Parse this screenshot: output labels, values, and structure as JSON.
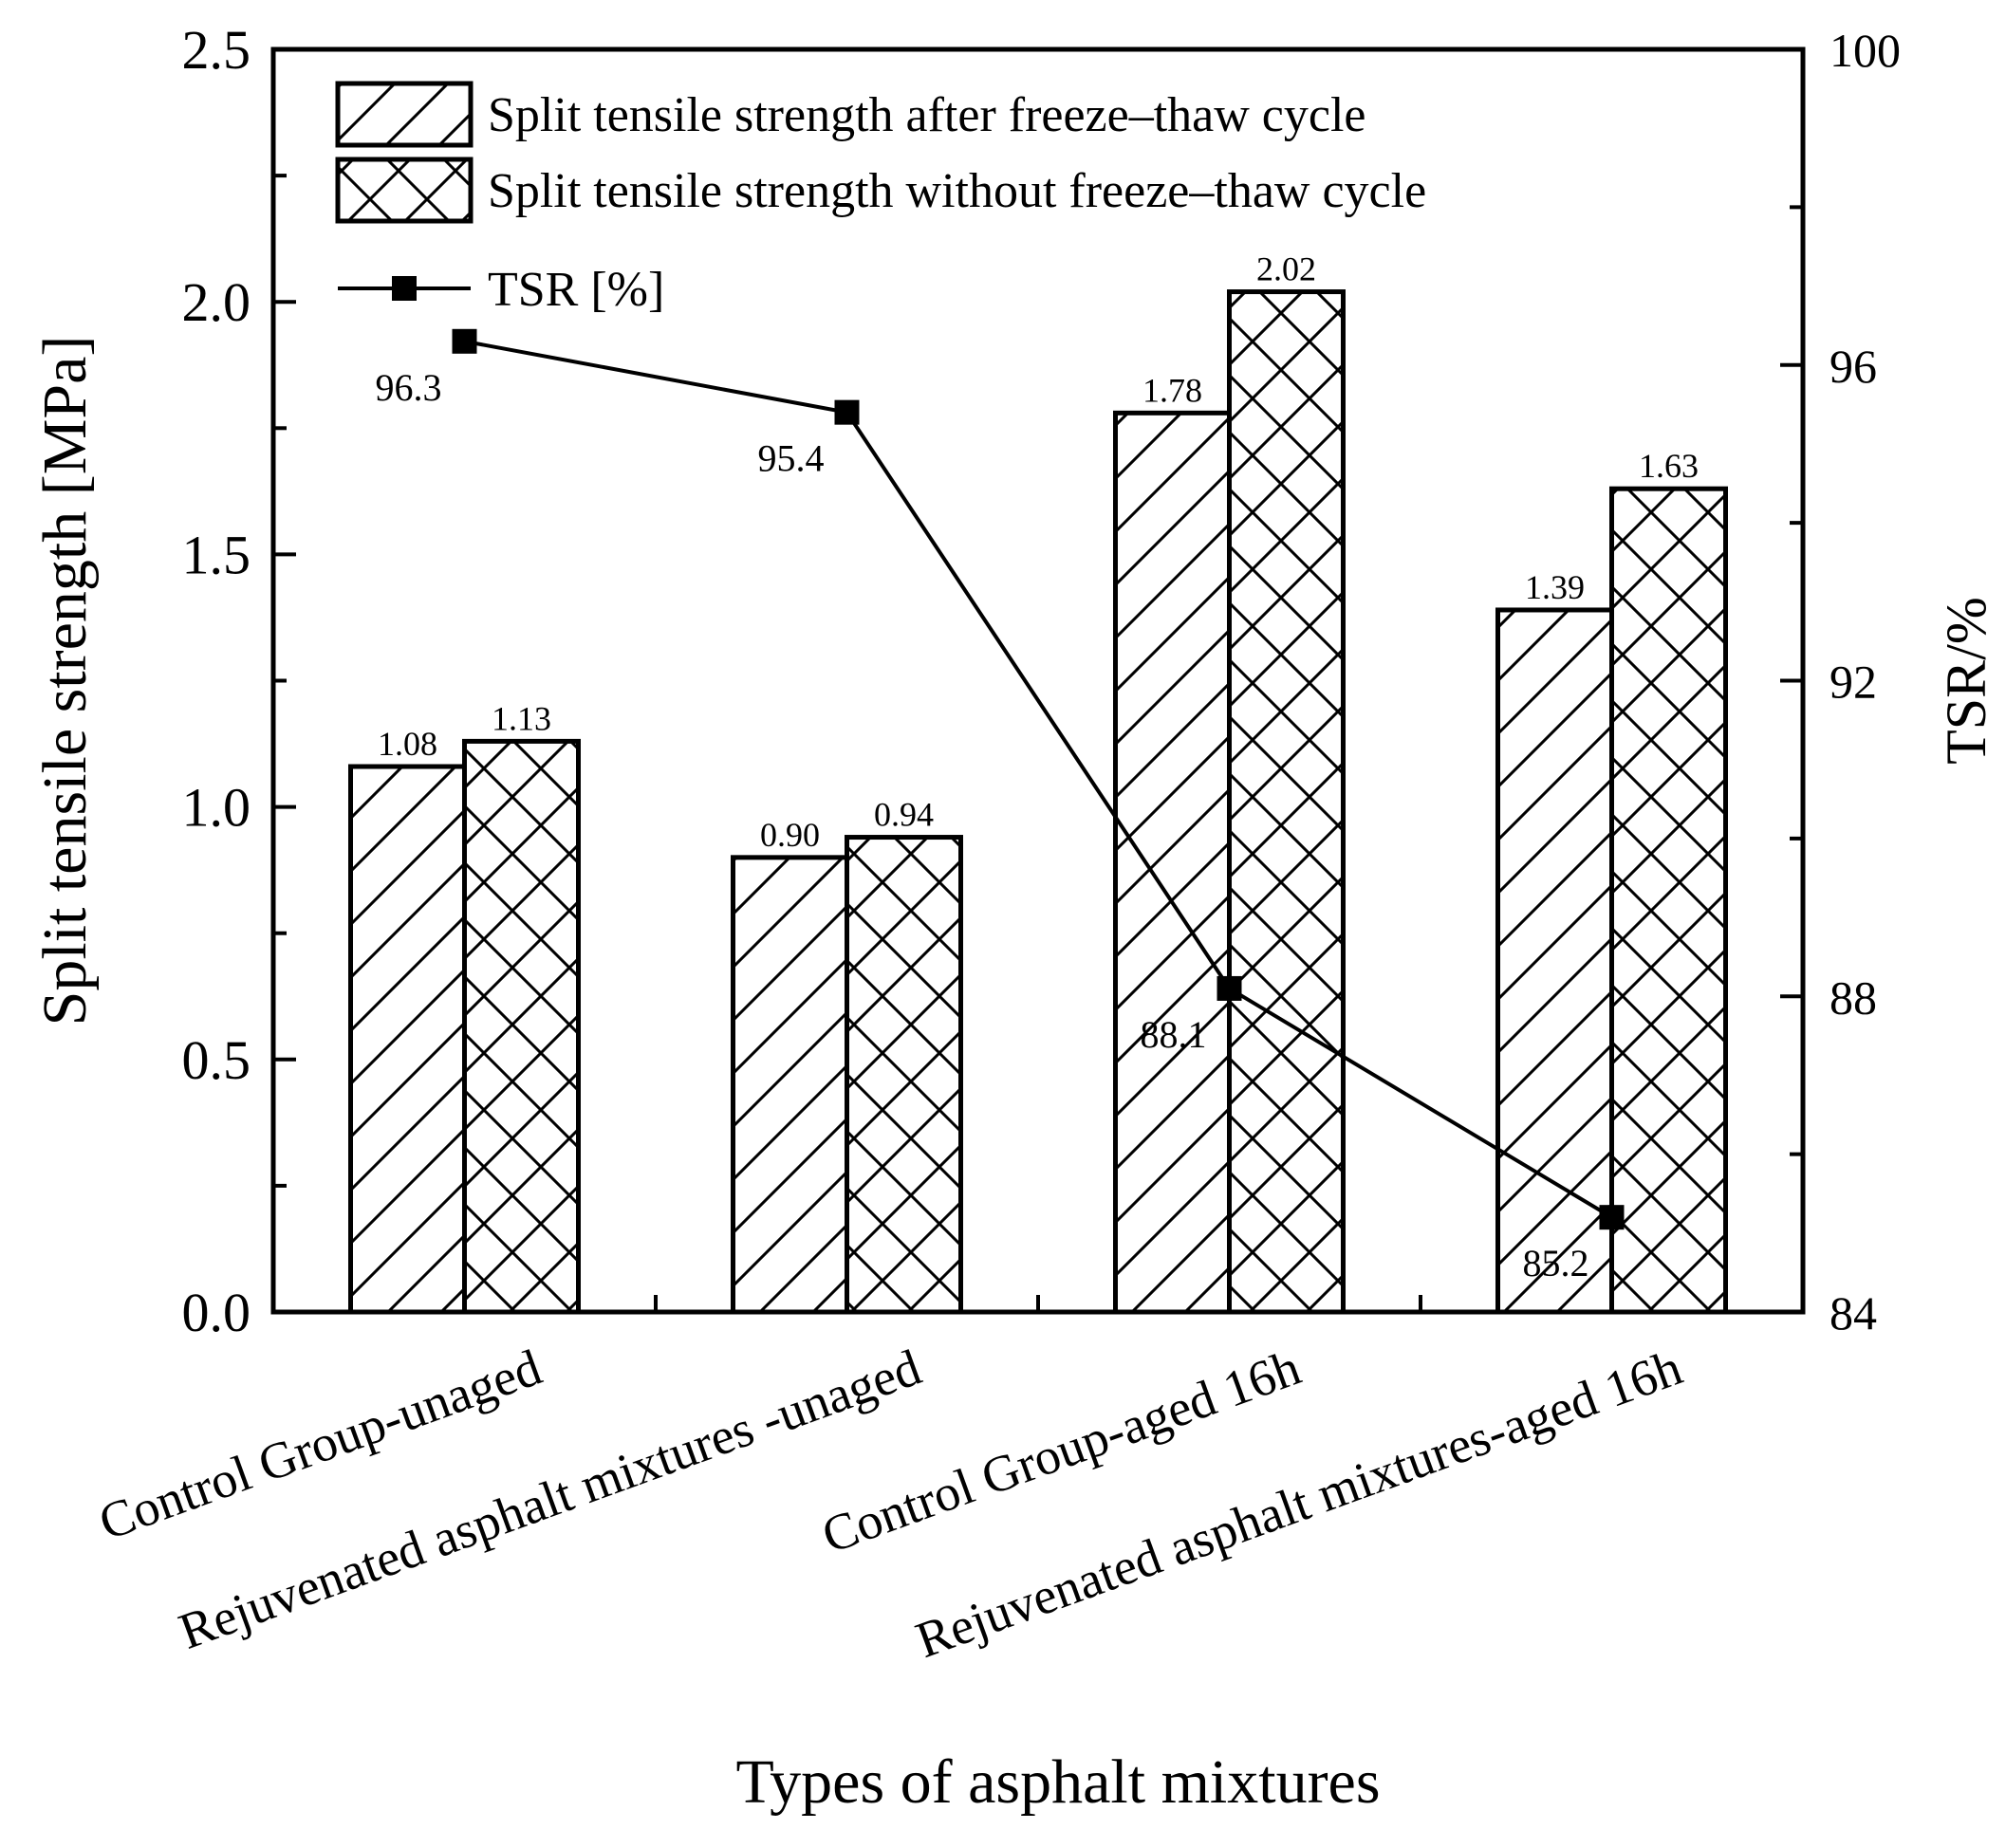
{
  "chart_data": {
    "type": "bar",
    "categories": [
      "Control Group-unaged",
      "Rejuvenated asphalt mixtures -unaged",
      "Control Group-aged 16h",
      "Rejuvenated asphalt mixtures-aged 16h"
    ],
    "series": [
      {
        "name": "Split tensile strength after freeze–thaw cycle",
        "values": [
          1.08,
          0.9,
          1.78,
          1.39
        ],
        "labels": [
          "1.08",
          "0.90",
          "1.78",
          "1.39"
        ],
        "pattern": "diagonal-hatch",
        "axis": "left"
      },
      {
        "name": "Split tensile strength without freeze–thaw cycle",
        "values": [
          1.13,
          0.94,
          2.02,
          1.63
        ],
        "labels": [
          "1.13",
          "0.94",
          "2.02",
          "1.63"
        ],
        "pattern": "cross-hatch",
        "axis": "left"
      }
    ],
    "line_series": {
      "name": "TSR [%]",
      "values": [
        96.3,
        95.4,
        88.1,
        85.2
      ],
      "labels": [
        "96.3",
        "95.4",
        "88.1",
        "85.2"
      ],
      "marker": "square",
      "axis": "right"
    },
    "xlabel": "Types of asphalt mixtures",
    "ylabel": "Split tensile strength [MPa]",
    "ylabel_right": "TSR/%",
    "ylim": [
      0,
      2.5
    ],
    "yticks": [
      "0.0",
      "0.5",
      "1.0",
      "1.5",
      "2.0",
      "2.5"
    ],
    "ylim_right": [
      84,
      100
    ],
    "yticks_right": [
      "84",
      "88",
      "92",
      "96",
      "100"
    ],
    "legend_position": "top-left",
    "grid": false
  }
}
